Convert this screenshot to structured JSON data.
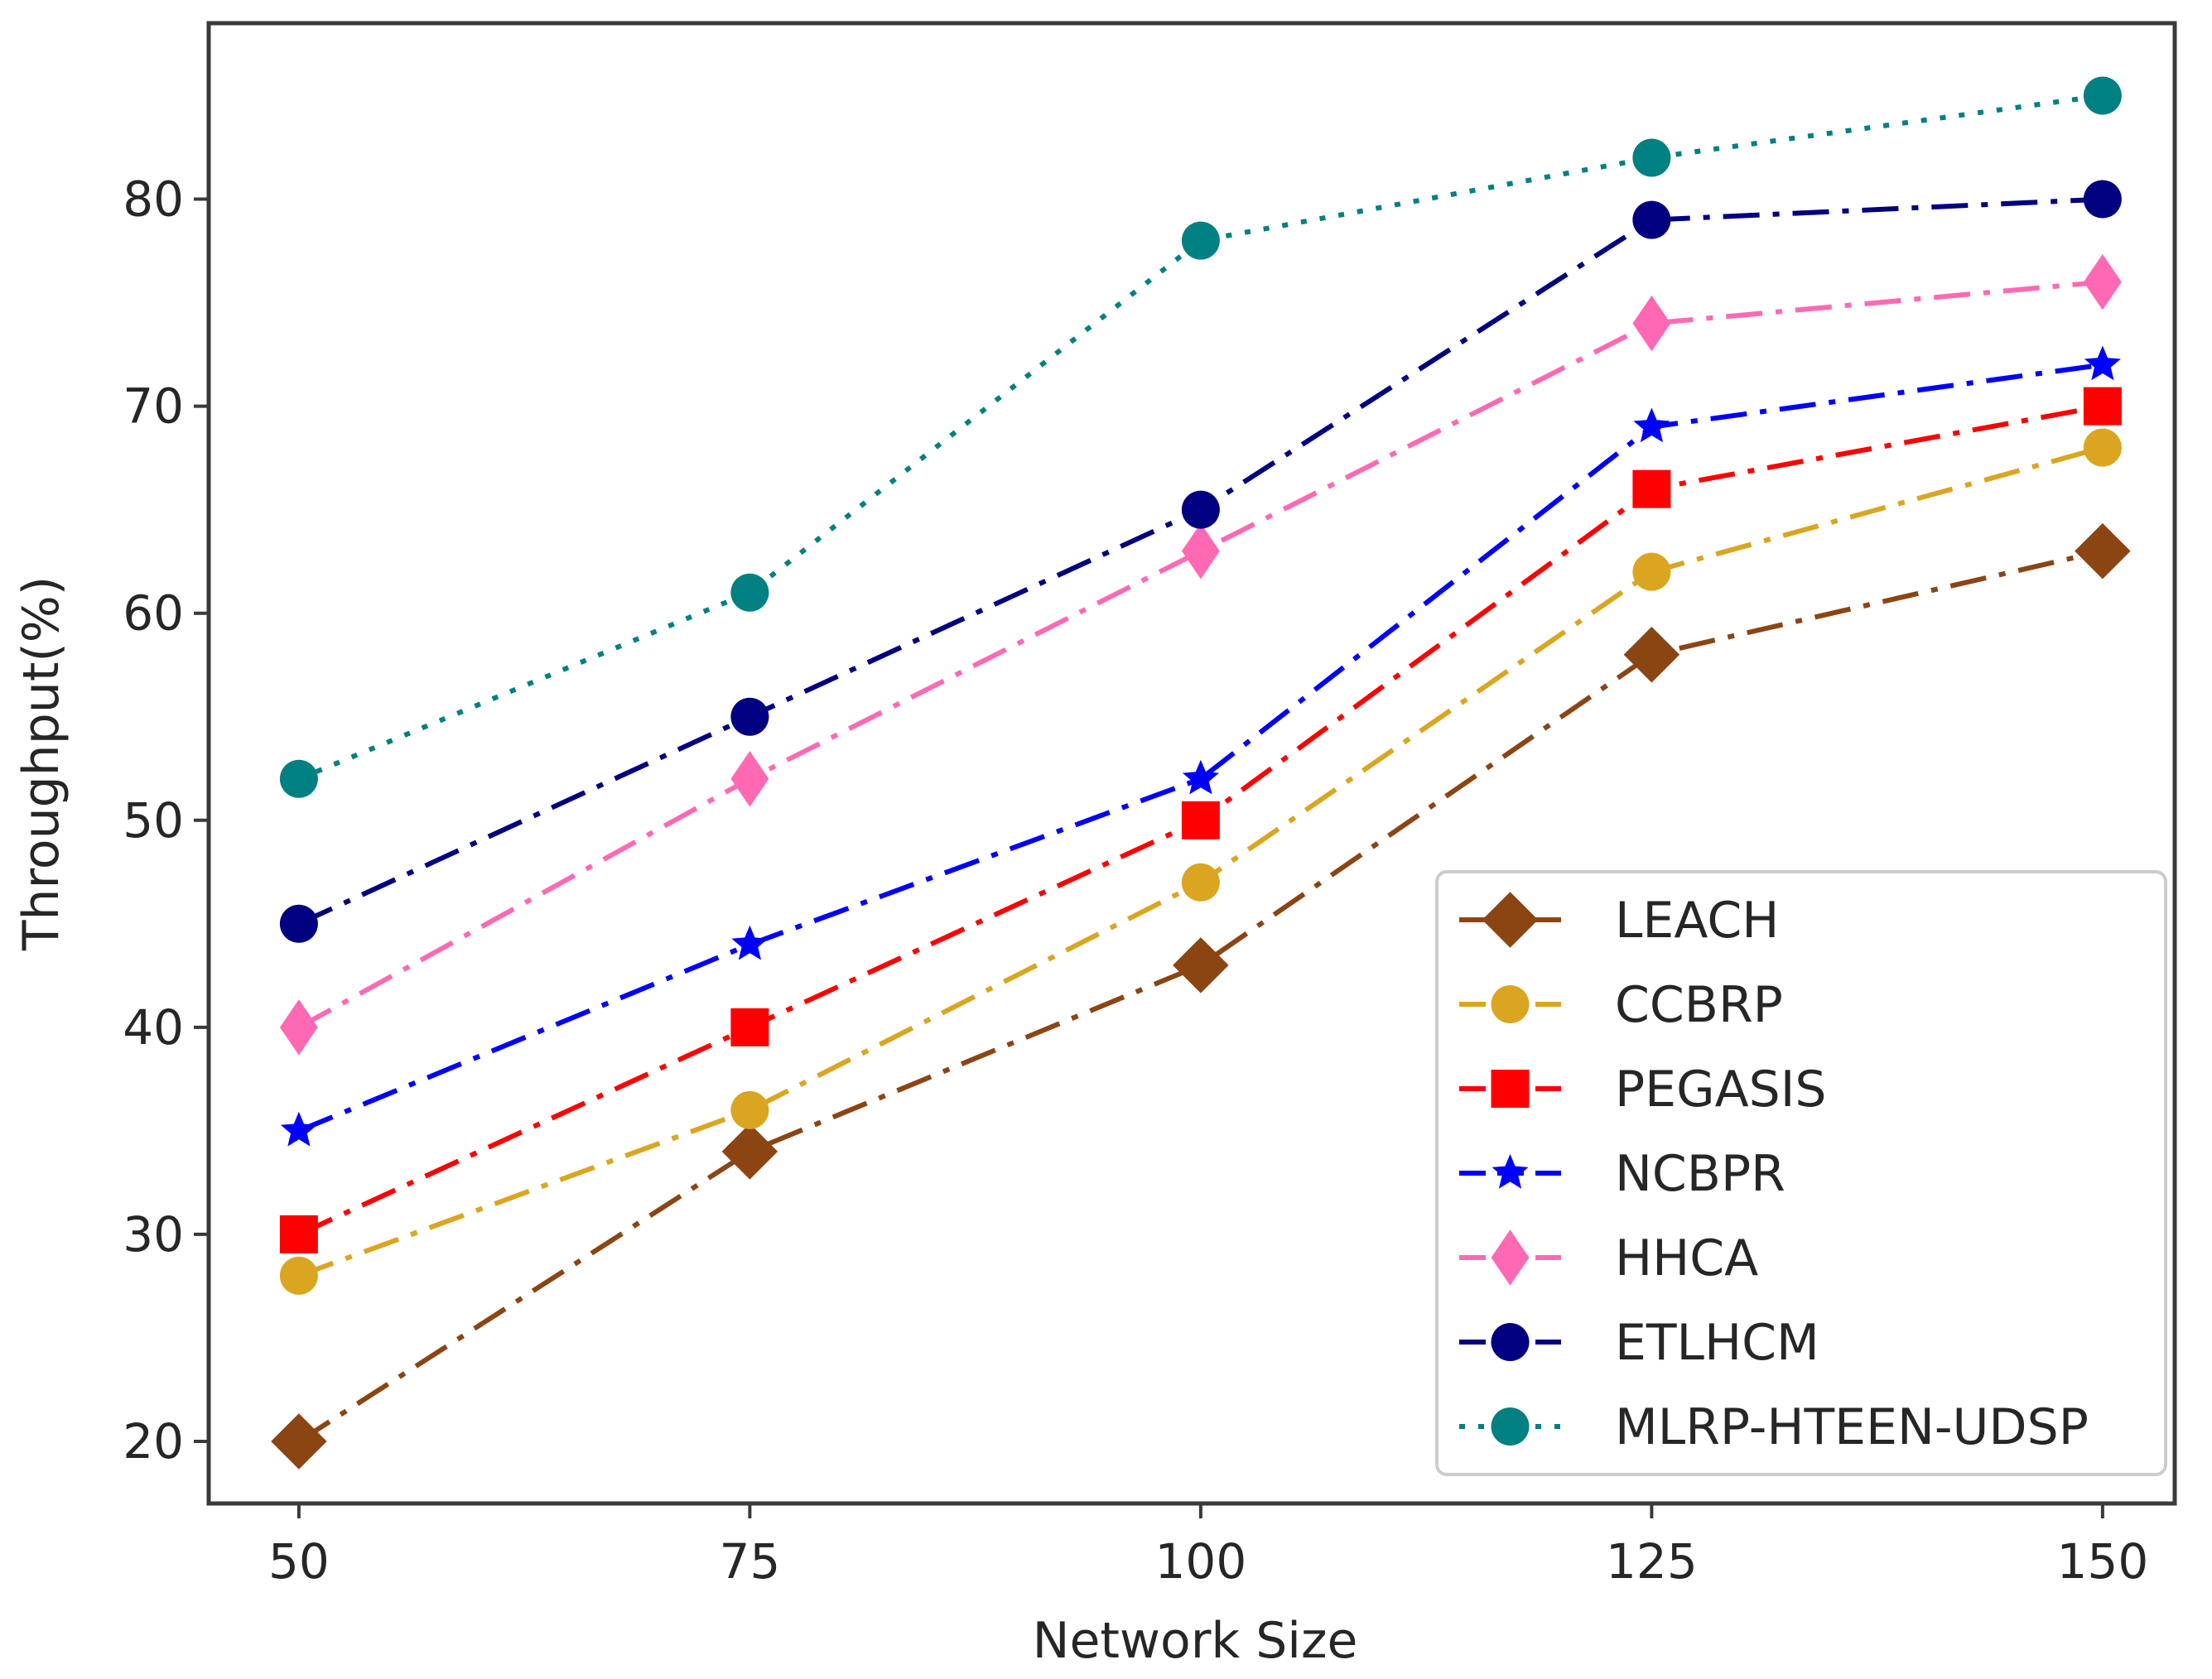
{
  "chart_data": {
    "type": "line",
    "title": "",
    "xlabel": "Network Size",
    "ylabel": "Throughput(%)",
    "x": [
      50,
      75,
      100,
      125,
      150
    ],
    "x_tick_labels": [
      "50",
      "75",
      "100",
      "125",
      "150"
    ],
    "xlim": [
      45,
      154
    ],
    "y_ticks": [
      20,
      30,
      40,
      50,
      60,
      70,
      80
    ],
    "y_tick_labels": [
      "20",
      "30",
      "40",
      "50",
      "60",
      "70",
      "80"
    ],
    "ylim": [
      17,
      88.5
    ],
    "grid": false,
    "legend_position": "lower-right",
    "series": [
      {
        "name": "LEACH",
        "values": [
          20,
          34,
          43,
          58,
          63
        ],
        "color": "#8B4513",
        "marker": "diamond",
        "linestyle": "dashdot"
      },
      {
        "name": "CCBRP",
        "values": [
          28,
          36,
          47,
          62,
          68
        ],
        "color": "#DAA520",
        "marker": "circle",
        "linestyle": "dashdot"
      },
      {
        "name": "PEGASIS",
        "values": [
          30,
          40,
          50,
          66,
          70
        ],
        "color": "#FF0000",
        "marker": "square",
        "linestyle": "dashdot"
      },
      {
        "name": "NCBPR",
        "values": [
          35,
          44,
          52,
          69,
          72
        ],
        "color": "#0000FF",
        "marker": "star",
        "linestyle": "dashdot"
      },
      {
        "name": "HHCA",
        "values": [
          40,
          52,
          63,
          74,
          76
        ],
        "color": "#FF69B4",
        "marker": "thin-diamond",
        "linestyle": "dashdot"
      },
      {
        "name": "ETLHCM",
        "values": [
          45,
          55,
          65,
          79,
          80
        ],
        "color": "#000080",
        "marker": "circle",
        "linestyle": "dashdot"
      },
      {
        "name": "MLRP-HTEEN-UDSP",
        "values": [
          52,
          61,
          78,
          82,
          85
        ],
        "color": "#008080",
        "marker": "circle",
        "linestyle": "dotted"
      }
    ]
  }
}
